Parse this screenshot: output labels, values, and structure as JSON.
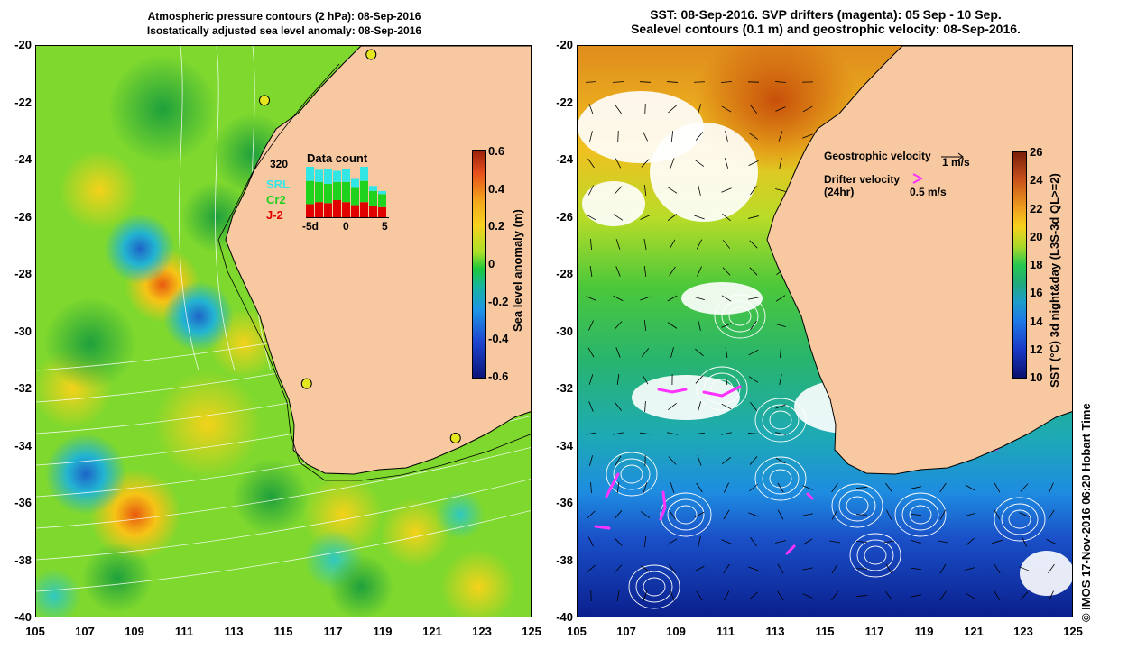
{
  "left_panel": {
    "title_line1": "Atmospheric pressure contours (2 hPa): 08-Sep-2016",
    "title_line2": "Isostatically adjusted sea level anomaly: 08-Sep-2016",
    "y_ticks": [
      "-20",
      "-22",
      "-24",
      "-26",
      "-28",
      "-30",
      "-32",
      "-34",
      "-36",
      "-38",
      "-40"
    ],
    "x_ticks": [
      "105",
      "107",
      "109",
      "111",
      "113",
      "115",
      "117",
      "119",
      "121",
      "123",
      "125"
    ],
    "colorbar": {
      "title": "Sea level anomaly (m)",
      "labels": [
        "0.6",
        "0.4",
        "0.2",
        "0",
        "-0.2",
        "-0.4",
        "-0.6"
      ],
      "range": [
        -0.6,
        0.6
      ]
    },
    "data_count": {
      "title": "Data count",
      "max_label": "320",
      "legend": [
        "SRL",
        "Cr2",
        "J-2"
      ],
      "legend_colors": [
        "#33e6e6",
        "#1ed21e",
        "#e00000"
      ],
      "x_labels": [
        "-5d",
        "0",
        "5"
      ],
      "bars": [
        {
          "srl": 0.28,
          "cr2": 0.46,
          "j2": 0.26
        },
        {
          "srl": 0.24,
          "cr2": 0.4,
          "j2": 0.3
        },
        {
          "srl": 0.3,
          "cr2": 0.38,
          "j2": 0.28
        },
        {
          "srl": 0.22,
          "cr2": 0.36,
          "j2": 0.34
        },
        {
          "srl": 0.26,
          "cr2": 0.4,
          "j2": 0.3
        },
        {
          "srl": 0.18,
          "cr2": 0.34,
          "j2": 0.24
        },
        {
          "srl": 0.28,
          "cr2": 0.42,
          "j2": 0.3
        },
        {
          "srl": 0.1,
          "cr2": 0.3,
          "j2": 0.22
        },
        {
          "srl": 0.06,
          "cr2": 0.26,
          "j2": 0.2
        }
      ]
    },
    "tide_gauges": [
      {
        "lon": 118.5,
        "lat": -20.3
      },
      {
        "lon": 114.2,
        "lat": -21.9
      },
      {
        "lon": 115.9,
        "lat": -31.8
      },
      {
        "lon": 121.9,
        "lat": -33.7
      }
    ]
  },
  "right_panel": {
    "title_line1": "SST: 08-Sep-2016. SVP drifters (magenta): 05 Sep - 10 Sep.",
    "title_line2": "Sealevel contours (0.1 m) and geostrophic velocity: 08-Sep-2016.",
    "y_ticks": [
      "-20",
      "-22",
      "-24",
      "-26",
      "-28",
      "-30",
      "-32",
      "-34",
      "-36",
      "-38",
      "-40"
    ],
    "x_ticks": [
      "105",
      "107",
      "109",
      "111",
      "113",
      "115",
      "117",
      "119",
      "121",
      "123",
      "125"
    ],
    "colorbar": {
      "title": "SST (°C) 3d night&day (L3S-3d QL>=2)",
      "labels": [
        "26",
        "24",
        "22",
        "20",
        "18",
        "16",
        "14",
        "12",
        "10"
      ],
      "range": [
        10,
        26
      ]
    },
    "legend": {
      "geostrophic_label": "Geostrophic velocity",
      "geostrophic_scale": "1 m/s",
      "drifter_label": "Drifter velocity",
      "drifter_sub": "(24hr)",
      "drifter_scale": "0.5 m/s"
    }
  },
  "credit": "© IMOS 17-Nov-2016 06:20 Hobart Time",
  "colors": {
    "land": "#f8c8a0",
    "coastline": "#000000",
    "drifter": "#ff33ff",
    "contour": "#ffffff"
  }
}
